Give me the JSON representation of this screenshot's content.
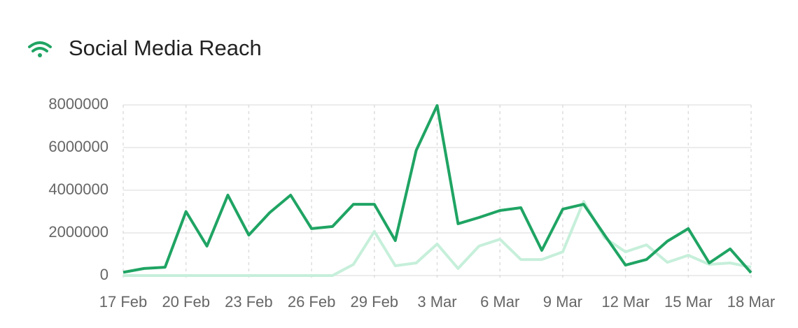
{
  "chart_data": {
    "type": "line",
    "title": "Social Media Reach",
    "categories": [
      "17 Feb",
      null,
      null,
      "20 Feb",
      null,
      null,
      "23 Feb",
      null,
      null,
      "26 Feb",
      null,
      null,
      "29 Feb",
      null,
      null,
      "3 Mar",
      null,
      null,
      "6 Mar",
      null,
      null,
      "9 Mar",
      null,
      null,
      "12 Mar",
      null,
      null,
      "15 Mar",
      null,
      null,
      "18 Mar"
    ],
    "series": [
      {
        "color": "#1fa463",
        "values": [
          150000,
          330000,
          390000,
          3000000,
          1380000,
          3770000,
          1900000,
          2950000,
          3770000,
          2200000,
          2300000,
          3340000,
          3340000,
          1640000,
          5870000,
          7970000,
          2430000,
          2720000,
          3050000,
          3180000,
          1180000,
          3110000,
          3340000,
          1900000,
          490000,
          750000,
          1610000,
          2200000,
          590000,
          1250000,
          130000
        ]
      },
      {
        "color": "#c6efda",
        "values": [
          0,
          0,
          0,
          0,
          0,
          0,
          0,
          0,
          0,
          0,
          0,
          520000,
          2070000,
          460000,
          590000,
          1480000,
          330000,
          1380000,
          1700000,
          750000,
          750000,
          1110000,
          3480000,
          1770000,
          1110000,
          1440000,
          620000,
          950000,
          520000,
          590000,
          390000
        ]
      }
    ],
    "ylim": [
      0,
      8000000
    ],
    "yticks": [
      0,
      2000000,
      4000000,
      6000000,
      8000000
    ],
    "grid": true
  }
}
